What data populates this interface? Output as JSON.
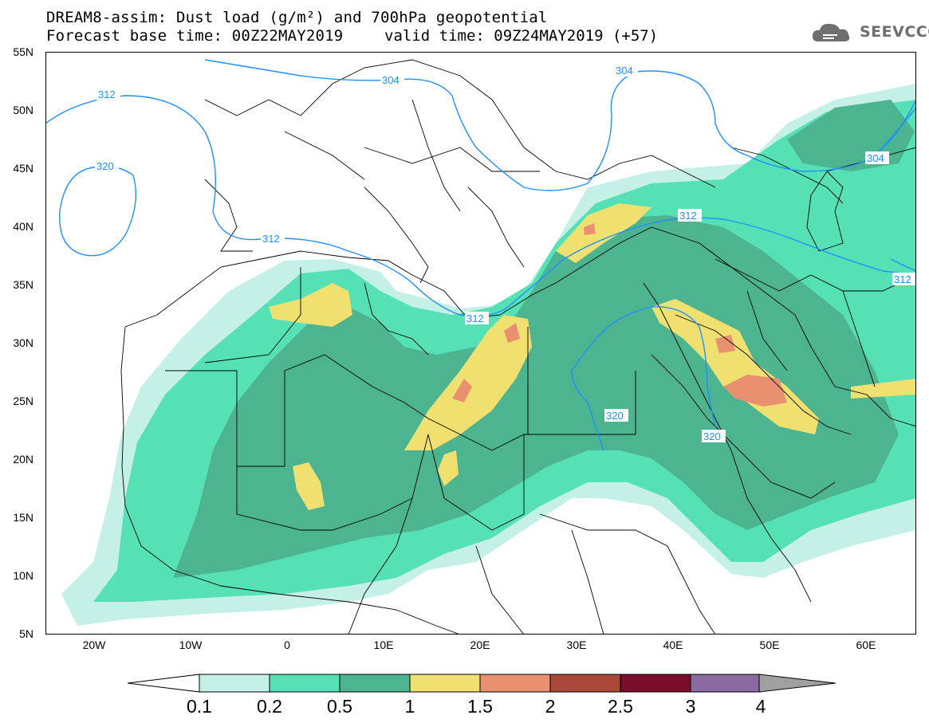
{
  "header": {
    "title": "DREAM8-assim: Dust load (g/m²) and 700hPa geopotential",
    "base_time": "Forecast base time: 00Z22MAY2019",
    "valid_time": "valid time: 09Z24MAY2019 (+57)"
  },
  "logo": {
    "text": "SEEVCCC",
    "icon": "cloud-icon"
  },
  "map": {
    "lat_labels": [
      "55N",
      "50N",
      "45N",
      "40N",
      "35N",
      "30N",
      "25N",
      "20N",
      "15N",
      "10N",
      "5N"
    ],
    "lon_labels": [
      "20W",
      "10W",
      "0",
      "10E",
      "20E",
      "30E",
      "40E",
      "50E",
      "60E"
    ],
    "extent": {
      "lon": [
        -25,
        65
      ],
      "lat": [
        5,
        55
      ]
    },
    "contour_color": "#1e90ff",
    "contour_labels": [
      "312",
      "320",
      "312",
      "304",
      "304",
      "304",
      "312",
      "312",
      "312",
      "320",
      "320"
    ]
  },
  "colorbar": {
    "ticks": [
      "0.1",
      "0.2",
      "0.5",
      "1",
      "1.5",
      "2",
      "2.5",
      "3",
      "4"
    ],
    "colors": [
      "#ffffff",
      "#c4f0e8",
      "#56e0b6",
      "#4db490",
      "#f0e070",
      "#e89070",
      "#a84838",
      "#7a0c2c",
      "#8a6aa0",
      "#a0a0a0"
    ]
  }
}
